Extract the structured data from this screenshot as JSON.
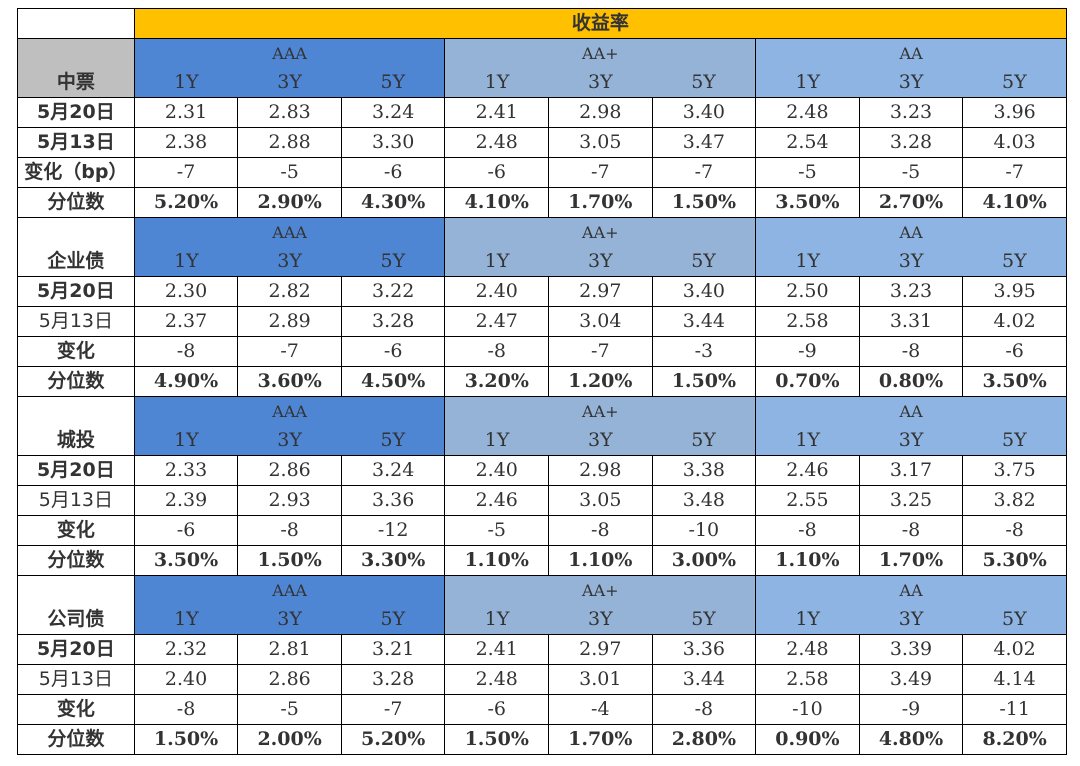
{
  "title": "收益率",
  "grades": [
    "AAA",
    "AA+",
    "AA"
  ],
  "tenors": [
    "1Y",
    "3Y",
    "5Y"
  ],
  "sections": [
    {
      "name": "中票",
      "rows": [
        {
          "label": "5月20日",
          "values": [
            "2.31",
            "2.83",
            "3.24",
            "2.41",
            "2.98",
            "3.40",
            "2.48",
            "3.23",
            "3.96"
          ]
        },
        {
          "label": "5月13日",
          "values": [
            "2.38",
            "2.88",
            "3.30",
            "2.48",
            "3.05",
            "3.47",
            "2.54",
            "3.28",
            "4.03"
          ]
        },
        {
          "label": "变化（bp）",
          "values": [
            "-7",
            "-5",
            "-6",
            "-6",
            "-7",
            "-7",
            "-5",
            "-5",
            "-7"
          ]
        },
        {
          "label": "分位数",
          "values": [
            "5.20%",
            "2.90%",
            "4.30%",
            "4.10%",
            "1.70%",
            "1.50%",
            "3.50%",
            "2.70%",
            "4.10%"
          ]
        }
      ]
    },
    {
      "name": "企业债",
      "rows": [
        {
          "label": "5月20日",
          "values": [
            "2.30",
            "2.82",
            "3.22",
            "2.40",
            "2.97",
            "3.40",
            "2.50",
            "3.23",
            "3.95"
          ]
        },
        {
          "label": "5月13日",
          "values": [
            "2.37",
            "2.89",
            "3.28",
            "2.47",
            "3.04",
            "3.44",
            "2.58",
            "3.31",
            "4.02"
          ]
        },
        {
          "label": "变化",
          "values": [
            "-8",
            "-7",
            "-6",
            "-8",
            "-7",
            "-3",
            "-9",
            "-8",
            "-6"
          ]
        },
        {
          "label": "分位数",
          "values": [
            "4.90%",
            "3.60%",
            "4.50%",
            "3.20%",
            "1.20%",
            "1.50%",
            "0.70%",
            "0.80%",
            "3.50%"
          ]
        }
      ]
    },
    {
      "name": "城投",
      "rows": [
        {
          "label": "5月20日",
          "values": [
            "2.33",
            "2.86",
            "3.24",
            "2.40",
            "2.98",
            "3.38",
            "2.46",
            "3.17",
            "3.75"
          ]
        },
        {
          "label": "5月13日",
          "values": [
            "2.39",
            "2.93",
            "3.36",
            "2.46",
            "3.05",
            "3.48",
            "2.55",
            "3.25",
            "3.82"
          ]
        },
        {
          "label": "变化",
          "values": [
            "-6",
            "-8",
            "-12",
            "-5",
            "-8",
            "-10",
            "-8",
            "-8",
            "-8"
          ]
        },
        {
          "label": "分位数",
          "values": [
            "3.50%",
            "1.50%",
            "3.30%",
            "1.10%",
            "1.10%",
            "3.00%",
            "1.10%",
            "1.70%",
            "5.30%"
          ]
        }
      ]
    },
    {
      "name": "公司债",
      "rows": [
        {
          "label": "5月20日",
          "values": [
            "2.32",
            "2.81",
            "3.21",
            "2.41",
            "2.97",
            "3.36",
            "2.48",
            "3.39",
            "4.02"
          ]
        },
        {
          "label": "5月13日",
          "values": [
            "2.40",
            "2.86",
            "3.28",
            "2.48",
            "3.01",
            "3.44",
            "2.58",
            "3.49",
            "4.14"
          ]
        },
        {
          "label": "变化",
          "values": [
            "-8",
            "-5",
            "-7",
            "-6",
            "-4",
            "-8",
            "-10",
            "-9",
            "-11"
          ]
        },
        {
          "label": "分位数",
          "values": [
            "1.50%",
            "2.00%",
            "5.20%",
            "1.50%",
            "1.70%",
            "2.80%",
            "0.90%",
            "4.80%",
            "8.20%"
          ]
        }
      ]
    }
  ],
  "colors": {
    "title_bg": "#ffc000",
    "aaa_bg": "#4f86d4",
    "aa_plus_bg": "#95b3d7",
    "aa_bg": "#8db4e2",
    "corner_grey": "#bfbfbf"
  }
}
